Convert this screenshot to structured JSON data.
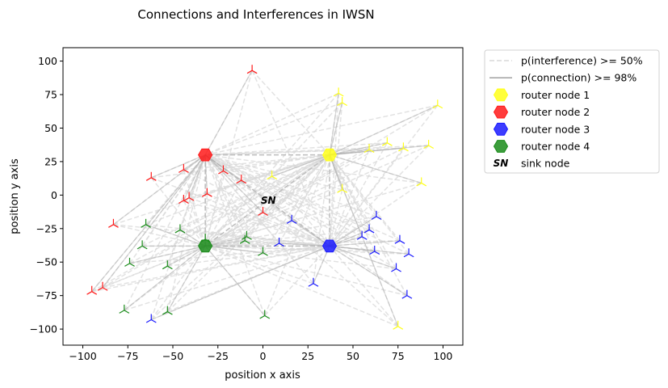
{
  "chart_data": {
    "type": "scatter",
    "title": "Connections and Interferences in IWSN",
    "xlabel": "position x axis",
    "ylabel": "position y axis",
    "xlim": [
      -111,
      111
    ],
    "ylim": [
      -112,
      110
    ],
    "xticks": [
      -100,
      -75,
      -50,
      -25,
      0,
      25,
      50,
      75,
      100
    ],
    "yticks": [
      -100,
      -75,
      -50,
      -25,
      0,
      25,
      50,
      75,
      100
    ],
    "grid": false,
    "legend_position": "outside-top-right",
    "legend": [
      {
        "label": "p(interference) >= 50%",
        "kind": "dashed-line",
        "color": "#d9d9d9"
      },
      {
        "label": "p(connection) >= 98%",
        "kind": "solid-line",
        "color": "#a0a0a0"
      },
      {
        "label": "router node 1",
        "kind": "hexagon",
        "color": "#ffff1a"
      },
      {
        "label": "router node 2",
        "kind": "hexagon",
        "color": "#ff1a1a"
      },
      {
        "label": "router node 3",
        "kind": "hexagon",
        "color": "#1a1aff"
      },
      {
        "label": "router node 4",
        "kind": "hexagon",
        "color": "#1a8c1a"
      },
      {
        "label": "sink node",
        "kind": "sn-text",
        "color": "#000000",
        "symbol": "SN"
      }
    ],
    "routers": [
      {
        "name": "router node 1",
        "x": 37,
        "y": 30,
        "color": "#ffff1a"
      },
      {
        "name": "router node 2",
        "x": -32,
        "y": 30,
        "color": "#ff1a1a"
      },
      {
        "name": "router node 3",
        "x": 37,
        "y": -38,
        "color": "#1a1aff"
      },
      {
        "name": "router node 4",
        "x": -32,
        "y": -38,
        "color": "#1a8c1a"
      }
    ],
    "sink": {
      "x": 3,
      "y": -4,
      "symbol": "SN"
    },
    "sensors": [
      {
        "router": 0,
        "x": 42,
        "y": 76
      },
      {
        "router": 0,
        "x": 44,
        "y": 69
      },
      {
        "router": 0,
        "x": 97,
        "y": 67
      },
      {
        "router": 0,
        "x": 59,
        "y": 34
      },
      {
        "router": 0,
        "x": 69,
        "y": 39
      },
      {
        "router": 0,
        "x": 78,
        "y": 35
      },
      {
        "router": 0,
        "x": 92,
        "y": 37
      },
      {
        "router": 0,
        "x": 44,
        "y": 4
      },
      {
        "router": 0,
        "x": 88,
        "y": 9
      },
      {
        "router": 0,
        "x": 5,
        "y": 14
      },
      {
        "router": 0,
        "x": 75,
        "y": -98
      },
      {
        "router": 1,
        "x": -6,
        "y": 93
      },
      {
        "router": 1,
        "x": -62,
        "y": 13
      },
      {
        "router": 1,
        "x": -44,
        "y": 19
      },
      {
        "router": 1,
        "x": -22,
        "y": 18
      },
      {
        "router": 1,
        "x": -12,
        "y": 11
      },
      {
        "router": 1,
        "x": -31,
        "y": 1
      },
      {
        "router": 1,
        "x": -44,
        "y": -4
      },
      {
        "router": 1,
        "x": -41,
        "y": -2
      },
      {
        "router": 1,
        "x": -83,
        "y": -22
      },
      {
        "router": 1,
        "x": 0,
        "y": -13
      },
      {
        "router": 1,
        "x": -95,
        "y": -72
      },
      {
        "router": 1,
        "x": -89,
        "y": -69
      },
      {
        "router": 2,
        "x": 16,
        "y": -19
      },
      {
        "router": 2,
        "x": 9,
        "y": -36
      },
      {
        "router": 2,
        "x": 63,
        "y": -16
      },
      {
        "router": 2,
        "x": 59,
        "y": -26
      },
      {
        "router": 2,
        "x": 55,
        "y": -31
      },
      {
        "router": 2,
        "x": 62,
        "y": -42
      },
      {
        "router": 2,
        "x": 76,
        "y": -34
      },
      {
        "router": 2,
        "x": 81,
        "y": -44
      },
      {
        "router": 2,
        "x": 74,
        "y": -55
      },
      {
        "router": 2,
        "x": 28,
        "y": -66
      },
      {
        "router": 2,
        "x": 80,
        "y": -75
      },
      {
        "router": 2,
        "x": -62,
        "y": -93
      },
      {
        "router": 3,
        "x": -65,
        "y": -22
      },
      {
        "router": 3,
        "x": -46,
        "y": -26
      },
      {
        "router": 3,
        "x": -67,
        "y": -38
      },
      {
        "router": 3,
        "x": -32,
        "y": -33
      },
      {
        "router": 3,
        "x": -9,
        "y": -31
      },
      {
        "router": 3,
        "x": -10,
        "y": -34
      },
      {
        "router": 3,
        "x": 0,
        "y": -43
      },
      {
        "router": 3,
        "x": -74,
        "y": -51
      },
      {
        "router": 3,
        "x": -53,
        "y": -53
      },
      {
        "router": 3,
        "x": -77,
        "y": -86
      },
      {
        "router": 3,
        "x": -53,
        "y": -87
      },
      {
        "router": 3,
        "x": 1,
        "y": -90
      }
    ]
  }
}
